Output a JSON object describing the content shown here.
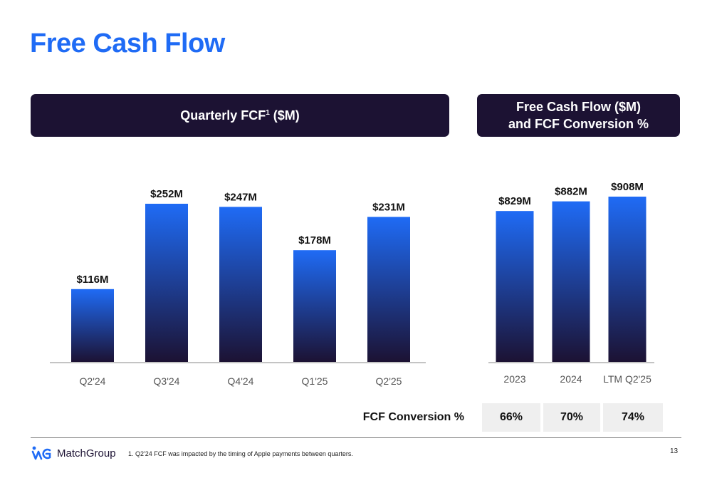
{
  "title": "Free Cash Flow",
  "left_panel": {
    "header_text": "Quarterly FCF",
    "header_sup": "1",
    "header_suffix": " ($M)"
  },
  "right_panel": {
    "header_line1": "Free Cash Flow ($M)",
    "header_line2": "and FCF Conversion %"
  },
  "colors": {
    "bar_top": "#1f6bf5",
    "bar_bottom": "#1c1233",
    "header_bg": "#1c1233",
    "title": "#1f6bf5"
  },
  "chart_data": [
    {
      "type": "bar",
      "title": "Quarterly FCF¹ ($M)",
      "categories": [
        "Q2'24",
        "Q3'24",
        "Q4'24",
        "Q1'25",
        "Q2'25"
      ],
      "values": [
        116,
        252,
        247,
        178,
        231
      ],
      "data_labels": [
        "$116M",
        "$252M",
        "$247M",
        "$178M",
        "$231M"
      ],
      "ylim": [
        0,
        252
      ],
      "grid": false
    },
    {
      "type": "bar",
      "title": "Free Cash Flow ($M) and FCF Conversion %",
      "categories": [
        "2023",
        "2024",
        "LTM Q2'25"
      ],
      "values": [
        829,
        882,
        908
      ],
      "data_labels": [
        "$829M",
        "$882M",
        "$908M"
      ],
      "ylim": [
        0,
        908
      ],
      "grid": false
    }
  ],
  "conversion": {
    "label": "FCF Conversion %",
    "values": [
      "66%",
      "70%",
      "74%"
    ]
  },
  "footer": {
    "logo_text": "MatchGroup",
    "footnote": "1. Q2'24 FCF was impacted by the timing of Apple payments between quarters.",
    "page_number": "13"
  }
}
